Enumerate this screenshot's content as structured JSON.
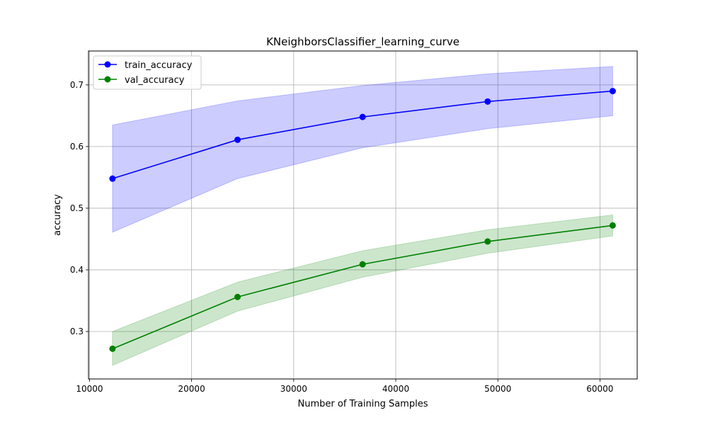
{
  "chart_data": {
    "type": "line",
    "title": "KNeighborsClassifier_learning_curve",
    "xlabel": "Number of Training Samples",
    "ylabel": "accuracy",
    "xlim": [
      9900,
      63650
    ],
    "ylim": [
      0.223,
      0.755
    ],
    "x_ticks": [
      10000,
      20000,
      30000,
      40000,
      50000,
      60000
    ],
    "y_ticks": [
      0.3,
      0.4,
      0.5,
      0.6,
      0.7
    ],
    "grid": true,
    "legend_position": "top-left",
    "x": [
      12250,
      24500,
      36750,
      49000,
      61250
    ],
    "series": [
      {
        "name": "train_accuracy",
        "color": "#0000ff",
        "band_color": "#0000ff",
        "values": [
          0.548,
          0.611,
          0.648,
          0.673,
          0.69
        ],
        "lower": [
          0.461,
          0.548,
          0.598,
          0.629,
          0.65
        ],
        "upper": [
          0.635,
          0.674,
          0.699,
          0.718,
          0.73
        ]
      },
      {
        "name": "val_accuracy",
        "color": "#008000",
        "band_color": "#008000",
        "values": [
          0.272,
          0.356,
          0.409,
          0.446,
          0.472
        ],
        "lower": [
          0.245,
          0.333,
          0.388,
          0.427,
          0.455
        ],
        "upper": [
          0.3,
          0.38,
          0.431,
          0.465,
          0.489
        ]
      }
    ]
  }
}
